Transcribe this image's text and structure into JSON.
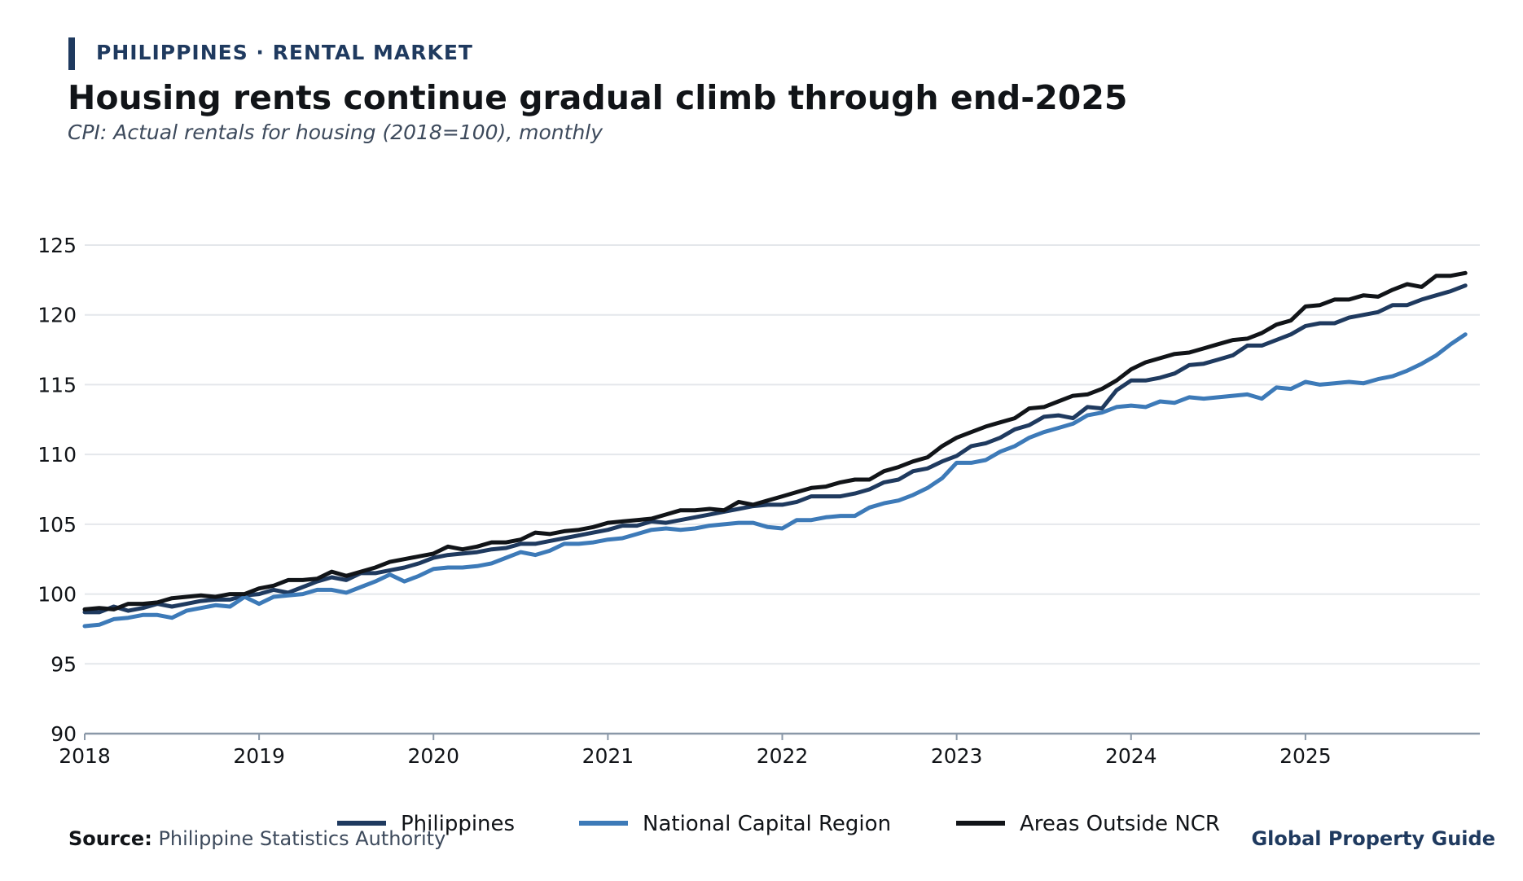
{
  "header": {
    "kicker": "PHILIPPINES · RENTAL MARKET",
    "title": "Housing rents continue gradual climb through end-2025",
    "subtitle": "CPI: Actual rentals for housing (2018=100), monthly"
  },
  "footer": {
    "source_label": "Source:",
    "source_text": "Philippine Statistics Authority",
    "brand": "Global Property Guide"
  },
  "chart_data": {
    "type": "line",
    "x_start": "2018-01",
    "x_end": "2025-12",
    "x_frequency": "monthly",
    "xticks": [
      "2018",
      "2019",
      "2020",
      "2021",
      "2022",
      "2023",
      "2024",
      "2025"
    ],
    "ylim": [
      90,
      125
    ],
    "yticks": [
      90,
      95,
      100,
      105,
      110,
      115,
      120,
      125
    ],
    "grid": "horizontal",
    "legend_position": "bottom-center",
    "series": [
      {
        "name": "Philippines",
        "color": "#1f3a5f",
        "values": [
          98.7,
          98.7,
          99.1,
          98.8,
          99.0,
          99.3,
          99.1,
          99.3,
          99.5,
          99.6,
          99.6,
          99.9,
          100.0,
          100.3,
          100.1,
          100.5,
          100.9,
          101.2,
          101.0,
          101.5,
          101.5,
          101.7,
          101.9,
          102.2,
          102.6,
          102.8,
          102.9,
          103.0,
          103.2,
          103.3,
          103.6,
          103.6,
          103.8,
          104.0,
          104.2,
          104.4,
          104.6,
          104.9,
          104.9,
          105.2,
          105.1,
          105.3,
          105.5,
          105.7,
          105.9,
          106.1,
          106.3,
          106.4,
          106.4,
          106.6,
          107.0,
          107.0,
          107.0,
          107.2,
          107.5,
          108.0,
          108.2,
          108.8,
          109.0,
          109.5,
          109.9,
          110.6,
          110.8,
          111.2,
          111.8,
          112.1,
          112.7,
          112.8,
          112.6,
          113.4,
          113.3,
          114.6,
          115.3,
          115.3,
          115.5,
          115.8,
          116.4,
          116.5,
          116.8,
          117.1,
          117.8,
          117.8,
          118.2,
          118.6,
          119.2,
          119.4,
          119.4,
          119.8,
          120.0,
          120.2,
          120.7,
          120.7,
          121.1,
          121.4,
          121.7,
          122.1
        ]
      },
      {
        "name": "National Capital Region",
        "color": "#3d7ab8",
        "values": [
          97.7,
          97.8,
          98.2,
          98.3,
          98.5,
          98.5,
          98.3,
          98.8,
          99.0,
          99.2,
          99.1,
          99.8,
          99.3,
          99.8,
          99.9,
          100.0,
          100.3,
          100.3,
          100.1,
          100.5,
          100.9,
          101.4,
          100.9,
          101.3,
          101.8,
          101.9,
          101.9,
          102.0,
          102.2,
          102.6,
          103.0,
          102.8,
          103.1,
          103.6,
          103.6,
          103.7,
          103.9,
          104.0,
          104.3,
          104.6,
          104.7,
          104.6,
          104.7,
          104.9,
          105.0,
          105.1,
          105.1,
          104.8,
          104.7,
          105.3,
          105.3,
          105.5,
          105.6,
          105.6,
          106.2,
          106.5,
          106.7,
          107.1,
          107.6,
          108.3,
          109.4,
          109.4,
          109.6,
          110.2,
          110.6,
          111.2,
          111.6,
          111.9,
          112.2,
          112.8,
          113.0,
          113.4,
          113.5,
          113.4,
          113.8,
          113.7,
          114.1,
          114.0,
          114.1,
          114.2,
          114.3,
          114.0,
          114.8,
          114.7,
          115.2,
          115.0,
          115.1,
          115.2,
          115.1,
          115.4,
          115.6,
          116.0,
          116.5,
          117.1,
          117.9,
          118.6
        ]
      },
      {
        "name": "Areas Outside NCR",
        "color": "#111418",
        "values": [
          98.9,
          99.0,
          98.9,
          99.3,
          99.3,
          99.4,
          99.7,
          99.8,
          99.9,
          99.8,
          100.0,
          100.0,
          100.4,
          100.6,
          101.0,
          101.0,
          101.1,
          101.6,
          101.3,
          101.6,
          101.9,
          102.3,
          102.5,
          102.7,
          102.9,
          103.4,
          103.2,
          103.4,
          103.7,
          103.7,
          103.9,
          104.4,
          104.3,
          104.5,
          104.6,
          104.8,
          105.1,
          105.2,
          105.3,
          105.4,
          105.7,
          106.0,
          106.0,
          106.1,
          106.0,
          106.6,
          106.4,
          106.7,
          107.0,
          107.3,
          107.6,
          107.7,
          108.0,
          108.2,
          108.2,
          108.8,
          109.1,
          109.5,
          109.8,
          110.6,
          111.2,
          111.6,
          112.0,
          112.3,
          112.6,
          113.3,
          113.4,
          113.8,
          114.2,
          114.3,
          114.7,
          115.3,
          116.1,
          116.6,
          116.9,
          117.2,
          117.3,
          117.6,
          117.9,
          118.2,
          118.3,
          118.7,
          119.3,
          119.6,
          120.6,
          120.7,
          121.1,
          121.1,
          121.4,
          121.3,
          121.8,
          122.2,
          122.0,
          122.8,
          122.8,
          123.0
        ]
      }
    ]
  }
}
